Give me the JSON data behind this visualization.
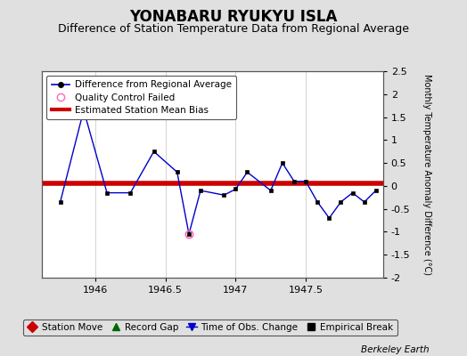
{
  "title": "YONABARU RYUKYU ISLA",
  "subtitle": "Difference of Station Temperature Data from Regional Average",
  "ylabel": "Monthly Temperature Anomaly Difference (°C)",
  "credit": "Berkeley Earth",
  "xlim": [
    1945.62,
    1948.05
  ],
  "ylim": [
    -2.0,
    2.5
  ],
  "yticks": [
    -2,
    -1.5,
    -1,
    -0.5,
    0,
    0.5,
    1,
    1.5,
    2,
    2.5
  ],
  "xticks": [
    1946,
    1946.5,
    1947,
    1947.5
  ],
  "bias_value": 0.05,
  "bg_color": "#e0e0e0",
  "plot_bg_color": "#ffffff",
  "line_color": "#0000cc",
  "bias_color": "#cc0000",
  "x_data": [
    1945.75,
    1945.917,
    1946.083,
    1946.25,
    1946.417,
    1946.583,
    1946.75,
    1946.917,
    1947.0,
    1947.083,
    1947.25,
    1947.333,
    1947.417,
    1947.5,
    1947.583,
    1947.667,
    1947.75,
    1947.833,
    1947.917,
    1948.0
  ],
  "y_data": [
    -0.35,
    1.65,
    -0.15,
    -0.15,
    0.75,
    0.3,
    -0.1,
    -0.2,
    -0.07,
    0.3,
    -0.1,
    0.5,
    0.1,
    0.1,
    -0.35,
    -0.7,
    -0.35,
    -0.15,
    -0.35,
    -0.1
  ],
  "x_data_qc": [
    1945.75,
    1945.917,
    1946.083,
    1946.25,
    1946.417,
    1946.583,
    1946.667,
    1946.75,
    1946.917,
    1947.0,
    1947.083,
    1947.25,
    1947.333,
    1947.417,
    1947.5,
    1947.583,
    1947.667,
    1947.75,
    1947.833,
    1947.917,
    1948.0
  ],
  "y_data_qc": [
    -0.35,
    1.65,
    -0.15,
    -0.15,
    0.75,
    0.3,
    -1.05,
    -0.1,
    -0.2,
    -0.07,
    0.3,
    -0.1,
    0.5,
    0.1,
    0.1,
    -0.35,
    -0.7,
    -0.35,
    -0.15,
    -0.35,
    -0.1
  ],
  "qc_fail_x": [
    1946.667
  ],
  "qc_fail_y": [
    -1.05
  ],
  "legend1_labels": [
    "Difference from Regional Average",
    "Quality Control Failed",
    "Estimated Station Mean Bias"
  ],
  "legend2_labels": [
    "Station Move",
    "Record Gap",
    "Time of Obs. Change",
    "Empirical Break"
  ],
  "title_fontsize": 12,
  "subtitle_fontsize": 9,
  "axis_fontsize": 7,
  "tick_fontsize": 8,
  "legend_fontsize": 7.5
}
